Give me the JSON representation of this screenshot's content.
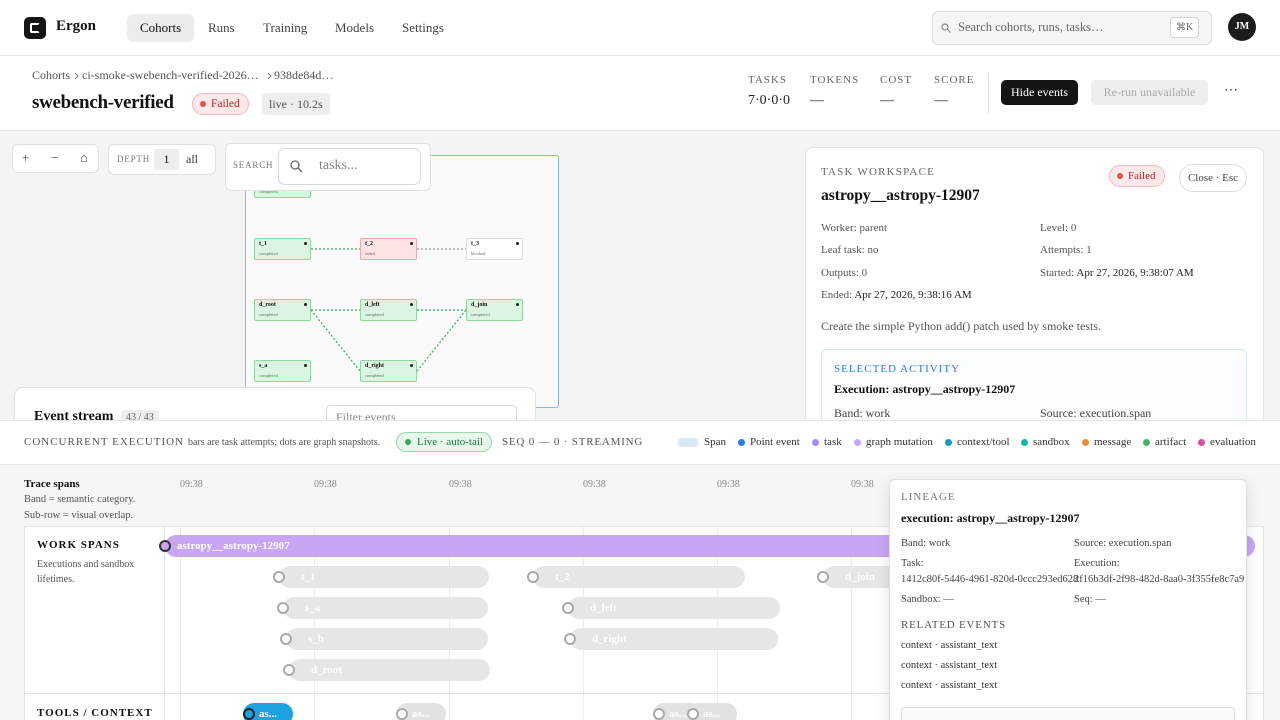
{
  "nav": {
    "brand": "Ergon",
    "tabs": [
      "Cohorts",
      "Runs",
      "Training",
      "Models",
      "Settings"
    ],
    "search": "Search cohorts, runs, tasks…",
    "shortcut": "⌘K",
    "avatar": "JM"
  },
  "header": {
    "breadcrumbs": [
      "Cohorts",
      "ci-smoke-swebench-verified-2026…",
      "938de84d…"
    ],
    "title": "swebench-verified",
    "status": "Failed",
    "live": "live · 10.2s",
    "stats": [
      {
        "label": "TASKS",
        "value": "7·0·0·0"
      },
      {
        "label": "TOKENS",
        "value": "—"
      },
      {
        "label": "COST",
        "value": "—"
      },
      {
        "label": "SCORE",
        "value": "—"
      }
    ],
    "actions": [
      "Hide events",
      "Re-run unavailable",
      "⋯"
    ]
  },
  "graph": {
    "zoom": [
      "+",
      "−",
      "⌂"
    ],
    "depth_label": "DEPTH",
    "depth": "1",
    "depth_all": "all",
    "search_label": "SEARCH",
    "search_placeholder": "tasks...",
    "nodes": [
      {
        "status": "completed"
      },
      {
        "name": "t_1",
        "status": "completed"
      },
      {
        "name": "t_2",
        "status": "failed"
      },
      {
        "name": "t_3",
        "status": "blocked"
      },
      {
        "name": "d_root",
        "status": "completed"
      },
      {
        "name": "d_left",
        "status": "completed"
      },
      {
        "name": "d_join",
        "status": "completed"
      },
      {
        "name": "s_a",
        "status": "completed"
      },
      {
        "name": "d_right",
        "status": "completed"
      }
    ]
  },
  "event_stream": {
    "title": "Event stream",
    "count": "43 / 43",
    "filter_placeholder": "Filter events"
  },
  "workspace": {
    "label": "TASK WORKSPACE",
    "title": "astropy__astropy-12907",
    "status": "Failed",
    "close": "Close · Esc",
    "fields": [
      {
        "label": "Worker:",
        "value": "parent"
      },
      {
        "label": "Level:",
        "value": "0"
      },
      {
        "label": "Leaf task:",
        "value": "no"
      },
      {
        "label": "Attempts:",
        "value": "1"
      },
      {
        "label": "Outputs:",
        "value": "0"
      },
      {
        "label": "Started:",
        "value": "Apr 27, 2026, 9:38:07 AM"
      },
      {
        "label": "Ended:",
        "value": "Apr 27, 2026, 9:38:16 AM"
      }
    ],
    "description": "Create the simple Python add() patch used by smoke tests.",
    "selected_activity": {
      "label": "SELECTED ACTIVITY",
      "title": "Execution: astropy__astropy-12907",
      "fields": [
        {
          "label": "Band:",
          "value": "work"
        },
        {
          "label": "Source:",
          "value": "execution.span"
        }
      ]
    }
  },
  "concurrent": {
    "title": "CONCURRENT EXECUTION",
    "note": "bars are task attempts; dots are graph snapshots.",
    "live": "Live · auto-tail",
    "seq": "SEQ 0 — 0 · STREAMING",
    "legend": [
      {
        "name": "Span",
        "color": "#dbe8f8"
      },
      {
        "name": "Point event",
        "color": "#2f7bd6"
      },
      {
        "name": "task",
        "color": "#a78bfa"
      },
      {
        "name": "graph mutation",
        "color": "#c9a6f5"
      },
      {
        "name": "context/tool",
        "color": "#1a9bb5"
      },
      {
        "name": "sandbox",
        "color": "#14b8a6"
      },
      {
        "name": "message",
        "color": "#e0913a"
      },
      {
        "name": "artifact",
        "color": "#3fb56a"
      },
      {
        "name": "evaluation",
        "color": "#d9509a"
      }
    ]
  },
  "timeline": {
    "title": "Trace spans",
    "notes": [
      "Band = semantic category.",
      "Sub-row = visual overlap."
    ],
    "ticks": [
      "09:38",
      "09:38",
      "09:38",
      "09:38",
      "09:38",
      "09:38"
    ],
    "lanes": [
      {
        "name": "WORK SPANS",
        "description": "Executions and sandbox lifetimes.",
        "spans": [
          "astropy__astropy-12907",
          "t_1",
          "t_2",
          "d_join",
          "s_a",
          "d_left",
          "s_b",
          "d_right",
          "d_root"
        ]
      },
      {
        "name": "TOOLS / CONTEXT",
        "spans": [
          "as...",
          "as...",
          "as...",
          "as..."
        ]
      }
    ]
  },
  "lineage": {
    "label": "LINEAGE",
    "title": "execution: astropy__astropy-12907",
    "fields": [
      {
        "label": "Band:",
        "value": "work"
      },
      {
        "label": "Source:",
        "value": "execution.span"
      },
      {
        "label": "Task:",
        "value": "1412c80f-5446-4961-820d-0ccc293ed628"
      },
      {
        "label": "Execution:",
        "value": "2f16b3df-2f98-482d-8aa0-3f355fe8c7a9"
      },
      {
        "label": "Sandbox:",
        "value": "—"
      },
      {
        "label": "Seq:",
        "value": "—"
      }
    ],
    "related_label": "RELATED EVENTS",
    "related": [
      "context · assistant_text",
      "context · assistant_text",
      "context · assistant_text"
    ]
  }
}
